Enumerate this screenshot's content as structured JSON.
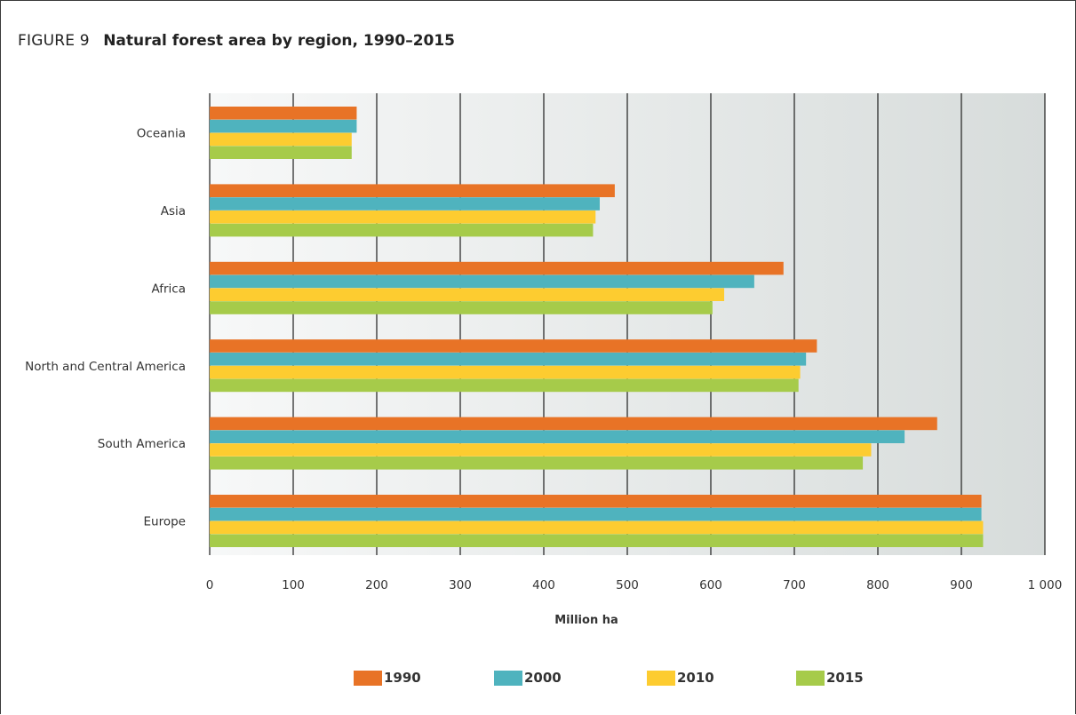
{
  "figure": {
    "label": "FIGURE 9",
    "title": "Natural forest area by region, 1990–2015"
  },
  "colors": {
    "1990": "#e87326",
    "2000": "#4fb3be",
    "2010": "#fdcc30",
    "2015": "#a6cb4a"
  },
  "chart_data": {
    "type": "bar",
    "orientation": "horizontal",
    "categories": [
      "Oceania",
      "Asia",
      "Africa",
      "North and Central America",
      "South America",
      "Europe"
    ],
    "series": [
      {
        "name": "1990",
        "values": [
          176,
          485,
          687,
          727,
          871,
          924
        ]
      },
      {
        "name": "2000",
        "values": [
          176,
          467,
          652,
          714,
          832,
          924
        ]
      },
      {
        "name": "2010",
        "values": [
          170,
          462,
          616,
          707,
          792,
          926
        ]
      },
      {
        "name": "2015",
        "values": [
          170,
          459,
          602,
          705,
          782,
          926
        ]
      }
    ],
    "xlabel": "Million ha",
    "xlim": [
      0,
      1000
    ],
    "xticks": [
      0,
      100,
      200,
      300,
      400,
      500,
      600,
      700,
      800,
      900,
      1000
    ],
    "xtick_labels": [
      "0",
      "100",
      "200",
      "300",
      "400",
      "500",
      "600",
      "700",
      "800",
      "900",
      "1 000"
    ],
    "grid": true,
    "legend": "bottom"
  }
}
